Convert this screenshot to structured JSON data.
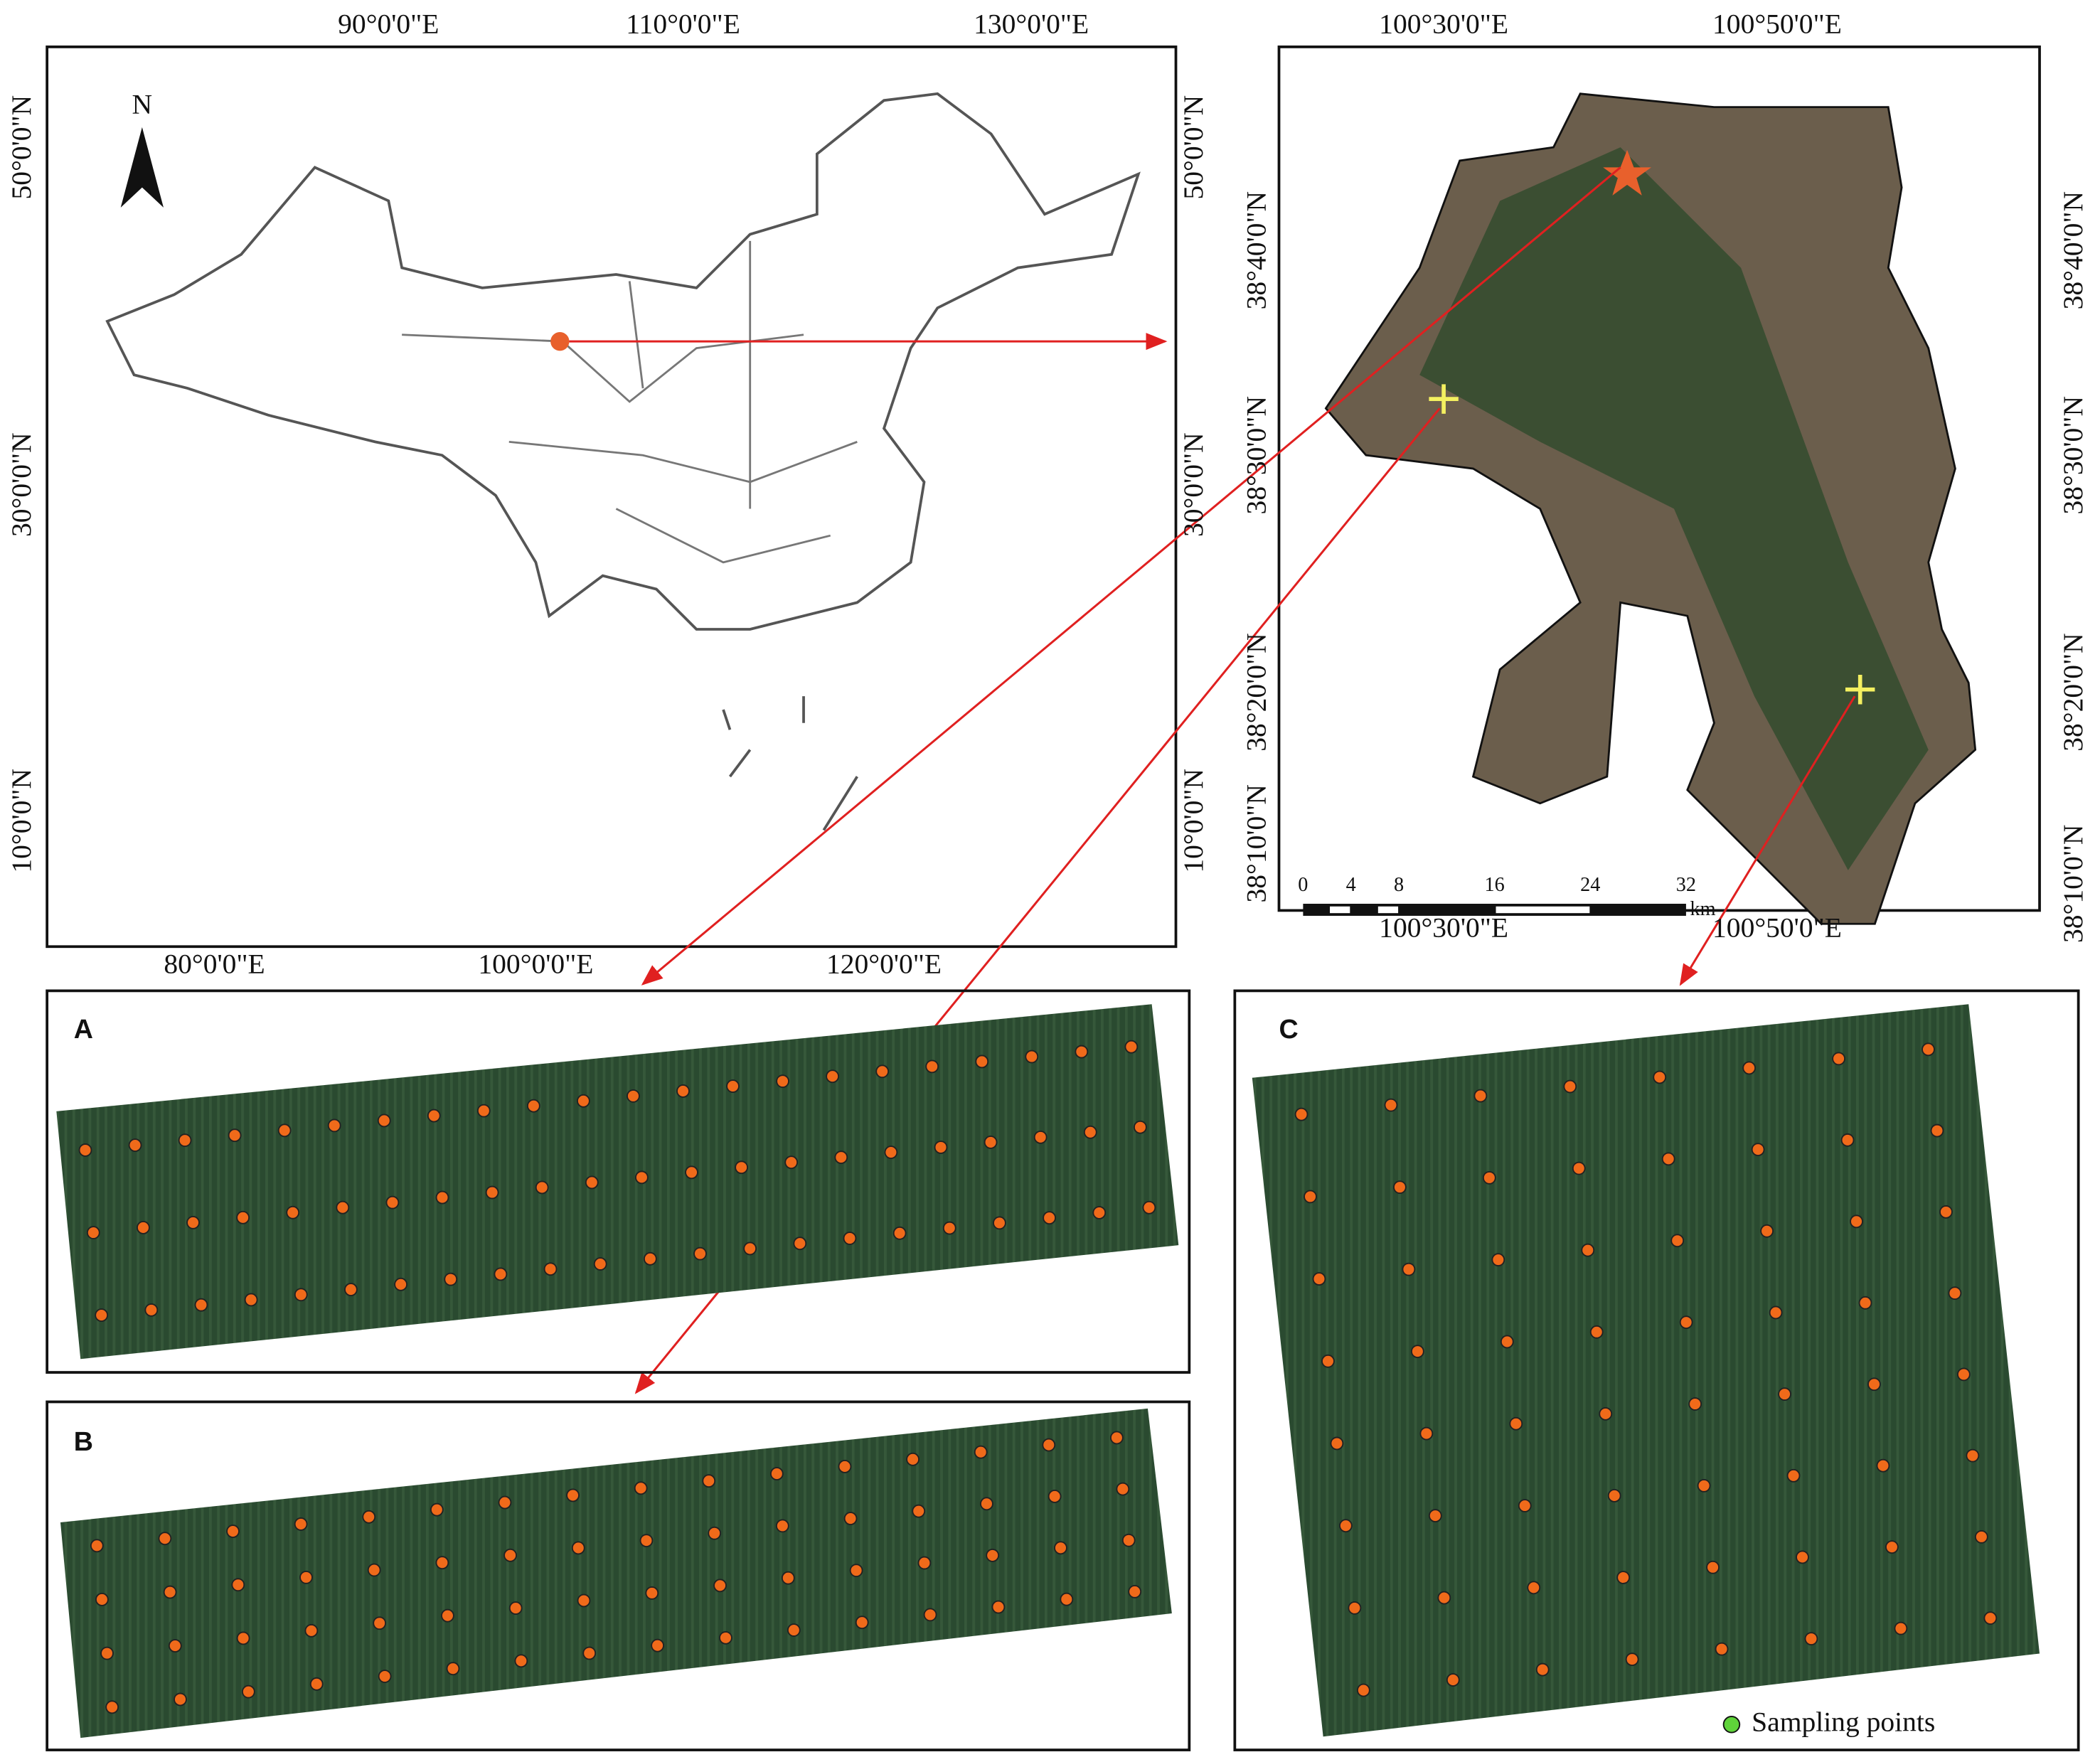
{
  "china_map": {
    "top_labels": [
      "90°0'0\"E",
      "110°0'0\"E",
      "130°0'0\"E"
    ],
    "bottom_labels": [
      "80°0'0\"E",
      "100°0'0\"E",
      "120°0'0\"E"
    ],
    "left_labels": [
      "50°0'0\"N",
      "30°0'0\"N",
      "10°0'0\"N"
    ],
    "right_labels": [
      "50°0'0\"N",
      "30°0'0\"N",
      "10°0'0\"N"
    ],
    "north": "N"
  },
  "study_area": {
    "top_labels": [
      "100°30'0\"E",
      "100°50'0\"E"
    ],
    "bottom_labels": [
      "100°30'0\"E",
      "100°50'0\"E"
    ],
    "left_labels": [
      "38°40'0\"N",
      "38°30'0\"N",
      "38°20'0\"N",
      "38°10'0\"N"
    ],
    "right_labels": [
      "38°40'0\"N",
      "38°30'0\"N",
      "38°20'0\"N",
      "38°10'0\"N"
    ],
    "scale_bar": {
      "ticks": [
        0,
        4,
        8,
        16,
        24,
        32
      ],
      "unit": "km"
    }
  },
  "panels": [
    {
      "label": "A"
    },
    {
      "label": "B"
    },
    {
      "label": "C"
    }
  ],
  "legend": {
    "label": "Sampling points"
  }
}
